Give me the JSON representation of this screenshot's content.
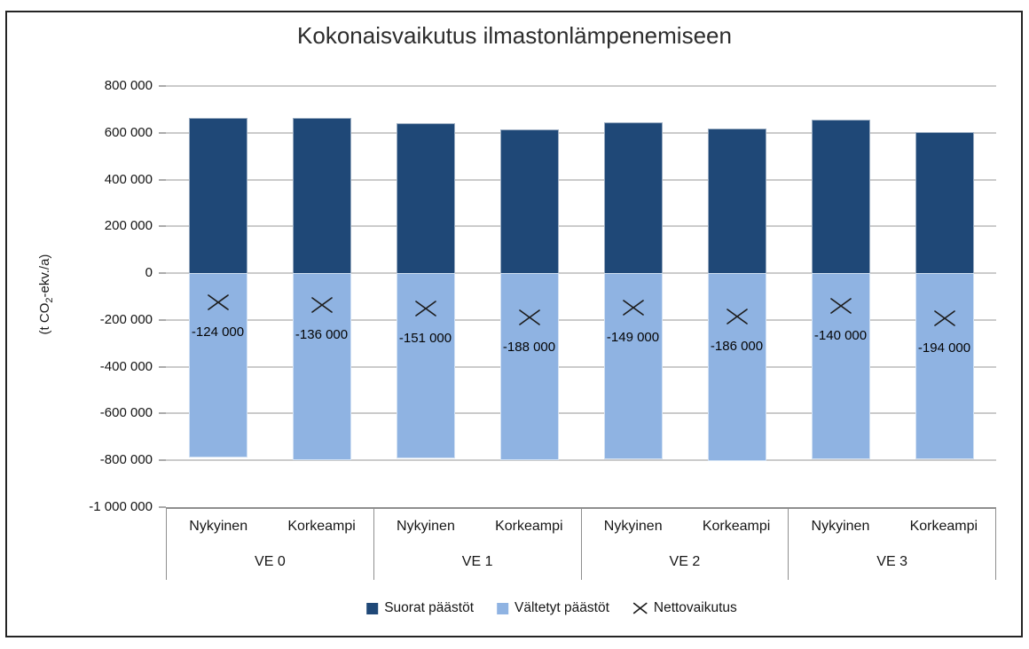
{
  "title": "Kokonaisvaikutus ilmastonlämpenemiseen",
  "y_axis": {
    "title_prefix": "(t CO",
    "title_subscript": "2",
    "title_suffix": "-ekv./a)",
    "ticks": [
      "800 000",
      "600 000",
      "400 000",
      "200 000",
      "0",
      "-200 000",
      "-400 000",
      "-600 000",
      "-800 000",
      "-1 000 000"
    ]
  },
  "x_axis": {
    "groups": [
      "VE 0",
      "VE 1",
      "VE 2",
      "VE 3"
    ],
    "sub_categories": [
      "Nykyinen",
      "Korkeampi"
    ]
  },
  "legend": {
    "items": [
      {
        "label": "Suorat päästöt",
        "swatch": "square",
        "color": "#1F4877"
      },
      {
        "label": "Vältetyt päästöt",
        "swatch": "square",
        "color": "#8FB3E2"
      },
      {
        "label": "Nettovaikutus",
        "swatch": "x-marker",
        "color": "#1C1C1C"
      }
    ]
  },
  "chart_data": {
    "type": "bar",
    "stacked": true,
    "title": "Kokonaisvaikutus ilmastonlämpenemiseen",
    "ylabel": "(t CO2-ekv./a)",
    "ylim": [
      -1000000,
      800000
    ],
    "ytick_step": 200000,
    "grid": true,
    "legend_position": "bottom",
    "groups": [
      "VE 0",
      "VE 1",
      "VE 2",
      "VE 3"
    ],
    "categories": [
      "VE 0 Nykyinen",
      "VE 0 Korkeampi",
      "VE 1 Nykyinen",
      "VE 1 Korkeampi",
      "VE 2 Nykyinen",
      "VE 2 Korkeampi",
      "VE 3 Nykyinen",
      "VE 3 Korkeampi"
    ],
    "series": [
      {
        "name": "Suorat päästöt",
        "color": "#1F4877",
        "values": [
          665000,
          663000,
          641000,
          613000,
          645000,
          617000,
          656000,
          602000
        ]
      },
      {
        "name": "Vältetyt päästöt",
        "color": "#8FB3E2",
        "values": [
          -789000,
          -799000,
          -792000,
          -801000,
          -794000,
          -803000,
          -796000,
          -796000
        ]
      }
    ],
    "markers": {
      "name": "Nettovaikutus",
      "shape": "x",
      "values": [
        -124000,
        -136000,
        -151000,
        -188000,
        -149000,
        -186000,
        -140000,
        -194000
      ],
      "labels": [
        "-124 000",
        "-136 000",
        "-151 000",
        "-188 000",
        "-149 000",
        "-186 000",
        "-140 000",
        "-194 000"
      ]
    }
  },
  "colors": {
    "suorat": "#1F4877",
    "valtetyt": "#8FB3E2",
    "gridline": "#CBCBCB",
    "axis_line": "#8F8F8F",
    "text": "#1C1C1C",
    "background": "#FFFFFF"
  }
}
